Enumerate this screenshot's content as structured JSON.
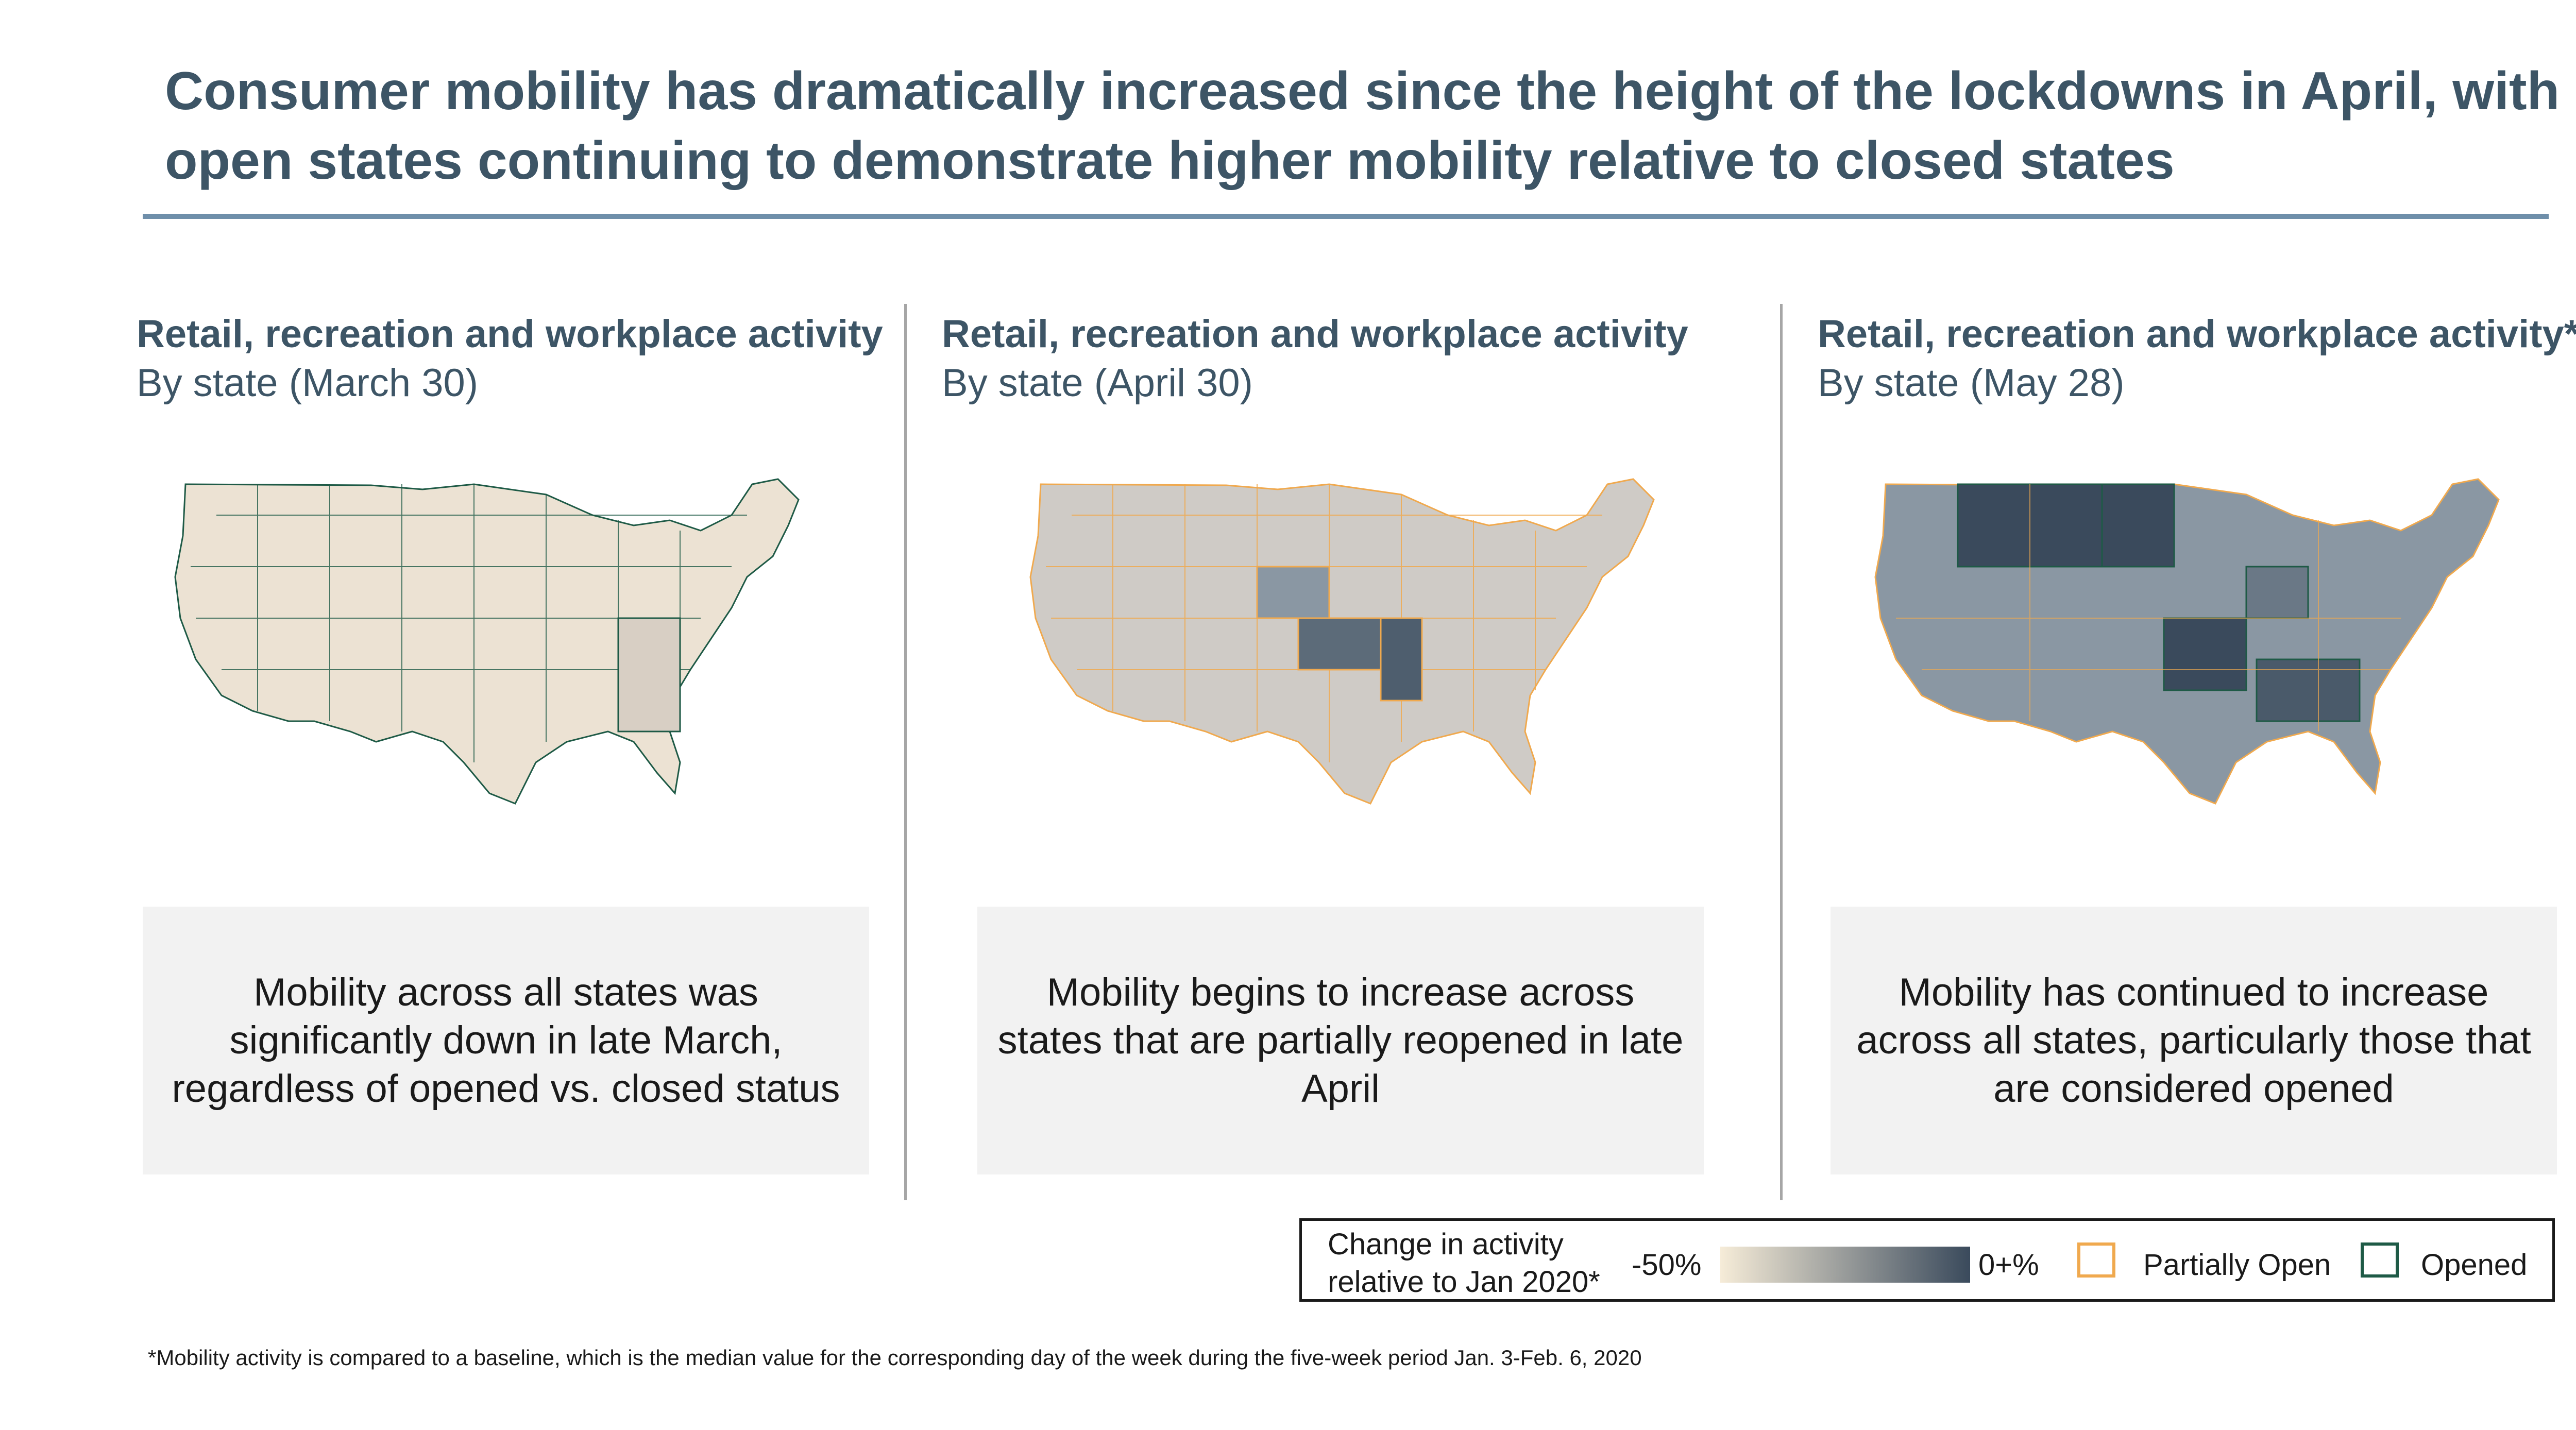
{
  "title": "Consumer mobility has dramatically increased since the height of the lockdowns in April, with open states continuing to demonstrate higher mobility relative to closed states",
  "panels": [
    {
      "heading": "Retail, recreation and workplace activity",
      "subheading": "By state (March 30)",
      "note": "Mobility across all states was significantly down in late March, regardless of opened vs. closed status",
      "map_border_color": "#1e5a46"
    },
    {
      "heading": "Retail, recreation and workplace activity",
      "subheading": "By state (April 30)",
      "note": "Mobility begins to increase across states that are partially reopened in late April",
      "map_border_color": "#f0a94e"
    },
    {
      "heading": "Retail, recreation and workplace activity*",
      "subheading": "By state (May 28)",
      "note": "Mobility has continued to increase across all states, particularly those that are considered opened",
      "map_border_color": "#1e5a46"
    }
  ],
  "legend": {
    "title_line1": "Change in activity",
    "title_line2": "relative to Jan 2020*",
    "scale_min": "-50%",
    "scale_max": "0+%",
    "scale_colors": [
      "#f6ecd8",
      "#3a4a5c"
    ],
    "partially_open_label": "Partially Open",
    "partially_open_color": "#f0a94e",
    "opened_label": "Opened",
    "opened_color": "#1e5a46"
  },
  "footnote": "*Mobility activity is compared to a baseline, which is the median value for the corresponding day of the week during the five-week period Jan. 3-Feb. 6, 2020"
}
